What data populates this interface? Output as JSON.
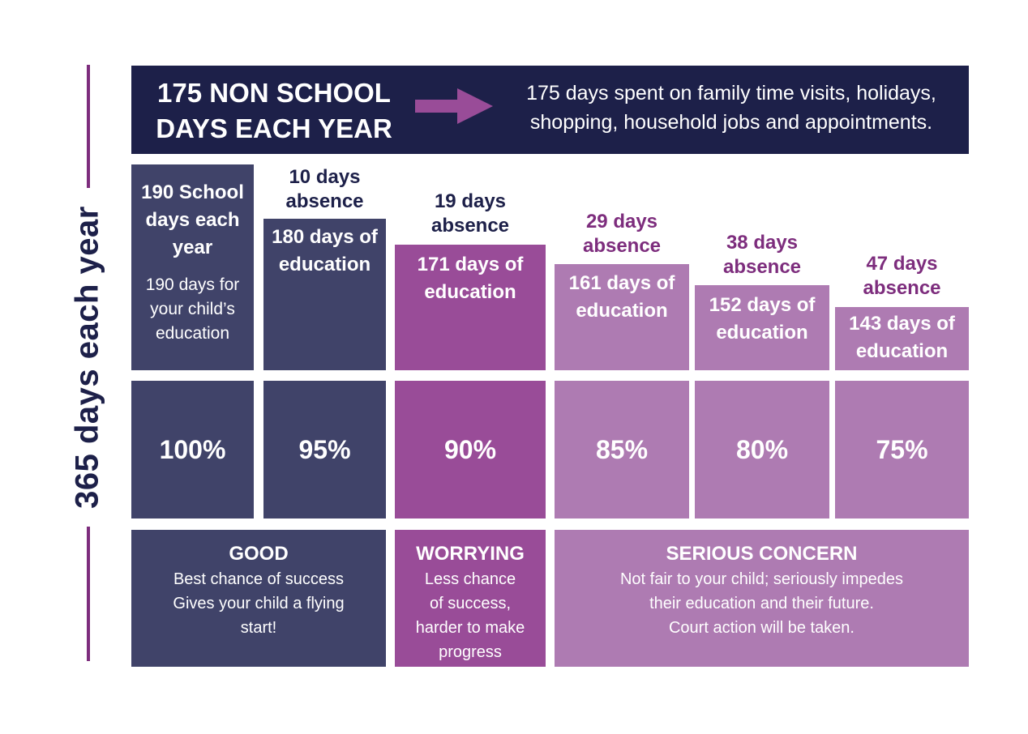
{
  "axis_label": "365 days each year",
  "banner": {
    "title_line1": "175 NON SCHOOL",
    "title_line2": "DAYS EACH YEAR",
    "text_line1": "175 days spent on family time visits, holidays,",
    "text_line2": "shopping, household jobs and appointments.",
    "arrow_icon": "arrow-right-icon",
    "colors": {
      "banner_bg": "#1d2049",
      "arrow": "#994c98"
    }
  },
  "columns": [
    {
      "header_line1": "",
      "header_line2": "",
      "bar_line1": "190 School",
      "bar_line2": "days each",
      "bar_line3": "year",
      "sub_line1": "190 days for",
      "sub_line2": "your child’s",
      "sub_line3": "education",
      "percent": "100%"
    },
    {
      "header_line1": "10 days",
      "header_line2": "absence",
      "bar_line1": "180 days of",
      "bar_line2": "education",
      "percent": "95%"
    },
    {
      "header_line1": "19 days",
      "header_line2": "absence",
      "bar_line1": "171 days of",
      "bar_line2": "education",
      "percent": "90%"
    },
    {
      "header_line1": "29 days",
      "header_line2": "absence",
      "bar_line1": "161 days of",
      "bar_line2": "education",
      "percent": "85%"
    },
    {
      "header_line1": "38 days",
      "header_line2": "absence",
      "bar_line1": "152 days of",
      "bar_line2": "education",
      "percent": "80%"
    },
    {
      "header_line1": "47 days",
      "header_line2": "absence",
      "bar_line1": "143 days of",
      "bar_line2": "education",
      "percent": "75%"
    }
  ],
  "ratings": [
    {
      "title": "GOOD",
      "line1": "Best chance of success",
      "line2": "Gives your child a flying",
      "line3": "start!"
    },
    {
      "title": "WORRYING",
      "line1": "Less chance",
      "line2": "of success,",
      "line3": "harder to make",
      "line4": "progress"
    },
    {
      "title": "SERIOUS CONCERN",
      "line1": "Not fair to your child; seriously impedes",
      "line2": "their education and their future.",
      "line3": "Court action will be taken."
    }
  ],
  "colors": {
    "navy": "#404369",
    "dark_purple": "#994c98",
    "light_purple": "#ae7bb2",
    "axis": "#7d2d7d"
  }
}
